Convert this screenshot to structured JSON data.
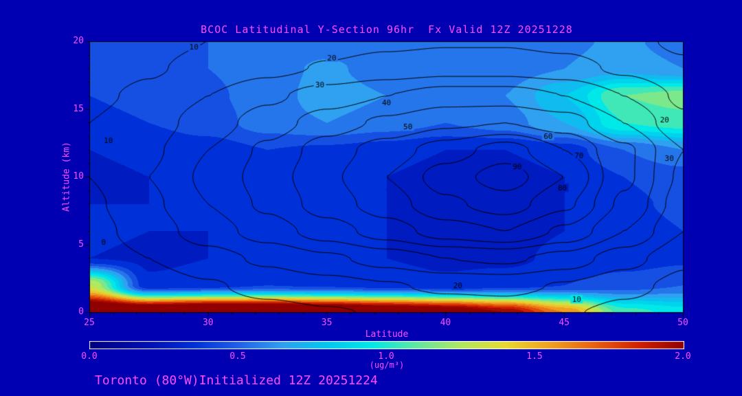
{
  "title": "BCOC Latitudinal Y-Section 96hr  Fx Valid 12Z 20251228",
  "footer": "Toronto (80°W)Initialized 12Z 20251224",
  "colors": {
    "background": "#0000B2",
    "label_text": "#FF4CFF",
    "contour_line": "#000000",
    "axis_frame": "#000000",
    "colorbar_outline": "#FFFFFF"
  },
  "axes": {
    "x": {
      "label": "Latitude",
      "min": 25,
      "max": 50,
      "major_ticks": [
        25,
        30,
        35,
        40,
        45,
        50
      ],
      "minor_tick_step": 1
    },
    "y": {
      "label": "Altitude (km)",
      "min": 0,
      "max": 20,
      "major_ticks": [
        0,
        5,
        10,
        15,
        20
      ],
      "minor_tick_step": 1
    }
  },
  "colorbar": {
    "min": 0.0,
    "max": 2.0,
    "tick_labels": [
      "0.0",
      "0.5",
      "1.0",
      "1.5",
      "2.0"
    ],
    "units": "(ug/m³)",
    "stops": [
      {
        "v": 0.0,
        "c": "#000082"
      },
      {
        "v": 0.2,
        "c": "#0010B4"
      },
      {
        "v": 0.35,
        "c": "#0030D8"
      },
      {
        "v": 0.5,
        "c": "#2060E8"
      },
      {
        "v": 0.65,
        "c": "#30A0F0"
      },
      {
        "v": 0.8,
        "c": "#00C8F0"
      },
      {
        "v": 0.95,
        "c": "#00E8E8"
      },
      {
        "v": 1.1,
        "c": "#60E8A0"
      },
      {
        "v": 1.25,
        "c": "#B0E860"
      },
      {
        "v": 1.4,
        "c": "#E8D830"
      },
      {
        "v": 1.55,
        "c": "#F0A020"
      },
      {
        "v": 1.7,
        "c": "#E86010"
      },
      {
        "v": 1.85,
        "c": "#D02000"
      },
      {
        "v": 2.0,
        "c": "#900000"
      }
    ]
  },
  "chart_data": {
    "type": "heatmap",
    "subtype": "latitude-height filled-contour cross-section with overlaid line contours",
    "title": "BCOC Latitudinal Y-Section 96hr  Fx Valid 12Z 20251228",
    "xlabel": "Latitude",
    "ylabel": "Altitude (km)",
    "x_latitude_deg": [
      25,
      27.5,
      30,
      32.5,
      35,
      37.5,
      40,
      42.5,
      45,
      47.5,
      50
    ],
    "y_altitude_km": [
      20,
      18,
      16,
      14,
      12,
      10,
      8,
      6,
      4,
      2,
      0
    ],
    "row_order": "top (20 km) first, bottom (0 km) last",
    "fill_field": {
      "name": "BCOC concentration",
      "units": "ug/m3",
      "scale_min": 0.0,
      "scale_max": 2.0,
      "values": [
        [
          0.45,
          0.48,
          0.5,
          0.52,
          0.55,
          0.5,
          0.52,
          0.55,
          0.58,
          0.62,
          0.55
        ],
        [
          0.42,
          0.45,
          0.5,
          0.56,
          0.62,
          0.55,
          0.5,
          0.55,
          0.6,
          0.66,
          0.6
        ],
        [
          0.4,
          0.42,
          0.48,
          0.55,
          0.65,
          0.6,
          0.55,
          0.6,
          0.8,
          1.1,
          1.15
        ],
        [
          0.38,
          0.4,
          0.45,
          0.55,
          0.6,
          0.55,
          0.5,
          0.55,
          0.7,
          1.0,
          1.05
        ],
        [
          0.3,
          0.32,
          0.35,
          0.4,
          0.38,
          0.35,
          0.3,
          0.3,
          0.35,
          0.5,
          0.6
        ],
        [
          0.28,
          0.3,
          0.32,
          0.35,
          0.33,
          0.3,
          0.25,
          0.25,
          0.3,
          0.4,
          0.45
        ],
        [
          0.3,
          0.3,
          0.32,
          0.35,
          0.33,
          0.3,
          0.28,
          0.25,
          0.3,
          0.38,
          0.42
        ],
        [
          0.32,
          0.3,
          0.3,
          0.33,
          0.32,
          0.3,
          0.28,
          0.27,
          0.3,
          0.35,
          0.4
        ],
        [
          0.3,
          0.28,
          0.3,
          0.32,
          0.3,
          0.3,
          0.28,
          0.28,
          0.32,
          0.35,
          0.38
        ],
        [
          1.3,
          0.32,
          0.35,
          0.4,
          0.38,
          0.35,
          0.32,
          0.35,
          0.4,
          0.45,
          0.5
        ],
        [
          2.4,
          2.4,
          2.5,
          2.5,
          2.4,
          2.3,
          2.2,
          2.0,
          1.6,
          1.05,
          0.95
        ]
      ]
    },
    "contour_field": {
      "levels": [
        10,
        20,
        30,
        40,
        50,
        60,
        70,
        80,
        90
      ],
      "values": [
        [
          4,
          7,
          10,
          13,
          16,
          18,
          19,
          19,
          17,
          13,
          8
        ],
        [
          5,
          9,
          13,
          17,
          21,
          24,
          26,
          26,
          24,
          18,
          12
        ],
        [
          8,
          12,
          20,
          28,
          35,
          40,
          45,
          45,
          40,
          30,
          18
        ],
        [
          10,
          15,
          25,
          35,
          45,
          52,
          58,
          60,
          55,
          40,
          22
        ],
        [
          10,
          18,
          30,
          42,
          55,
          65,
          75,
          85,
          70,
          52,
          30
        ],
        [
          10,
          20,
          32,
          45,
          58,
          70,
          85,
          95,
          80,
          52,
          28
        ],
        [
          8,
          18,
          30,
          42,
          55,
          65,
          78,
          85,
          72,
          48,
          25
        ],
        [
          6,
          15,
          25,
          35,
          45,
          55,
          65,
          70,
          58,
          40,
          20
        ],
        [
          4,
          10,
          16,
          22,
          28,
          34,
          40,
          42,
          36,
          24,
          12
        ],
        [
          2,
          5,
          9,
          13,
          16,
          19,
          22,
          23,
          19,
          13,
          7
        ],
        [
          1,
          3,
          5,
          7,
          9,
          11,
          13,
          14,
          11,
          7,
          4
        ]
      ]
    },
    "contour_labels": [
      {
        "text": "10",
        "lat": 29.4,
        "alt": 19.6
      },
      {
        "text": "20",
        "lat": 35.2,
        "alt": 18.8
      },
      {
        "text": "30",
        "lat": 34.7,
        "alt": 16.8
      },
      {
        "text": "40",
        "lat": 37.5,
        "alt": 15.5
      },
      {
        "text": "50",
        "lat": 38.4,
        "alt": 13.7
      },
      {
        "text": "10",
        "lat": 25.8,
        "alt": 12.7
      },
      {
        "text": "20",
        "lat": 49.2,
        "alt": 14.2
      },
      {
        "text": "30",
        "lat": 49.4,
        "alt": 11.4
      },
      {
        "text": "60",
        "lat": 44.3,
        "alt": 13.0
      },
      {
        "text": "70",
        "lat": 45.6,
        "alt": 11.6
      },
      {
        "text": "80",
        "lat": 44.9,
        "alt": 9.2
      },
      {
        "text": "90",
        "lat": 43.0,
        "alt": 10.8
      },
      {
        "text": "0",
        "lat": 25.6,
        "alt": 5.2
      },
      {
        "text": "20",
        "lat": 40.5,
        "alt": 2.0
      },
      {
        "text": "10",
        "lat": 45.5,
        "alt": 1.0
      }
    ]
  }
}
